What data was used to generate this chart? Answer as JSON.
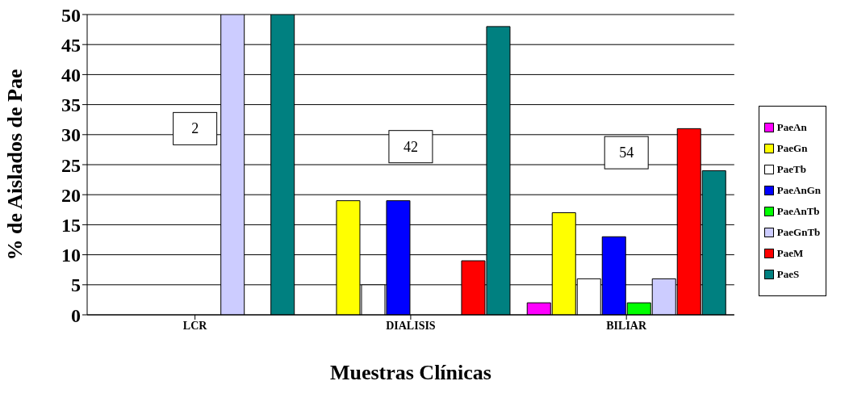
{
  "chart_data": {
    "type": "bar",
    "xlabel": "Muestras Clínicas",
    "ylabel": "% de Aislados de Pae",
    "categories": [
      "LCR",
      "DIALISIS",
      "BILIAR"
    ],
    "series": [
      {
        "name": "PaeAn",
        "color": "#ff00ff",
        "values": [
          0,
          0,
          2
        ]
      },
      {
        "name": "PaeGn",
        "color": "#ffff00",
        "values": [
          0,
          19,
          17
        ]
      },
      {
        "name": "PaeTb",
        "color": "#ffffff",
        "values": [
          0,
          5,
          6
        ]
      },
      {
        "name": "PaeAnGn",
        "color": "#0000ff",
        "values": [
          0,
          19,
          13
        ]
      },
      {
        "name": "PaeAnTb",
        "color": "#00ff00",
        "values": [
          0,
          0,
          2
        ]
      },
      {
        "name": "PaeGnTb",
        "color": "#ccccff",
        "values": [
          50,
          0,
          6
        ]
      },
      {
        "name": "PaeM",
        "color": "#ff0000",
        "values": [
          0,
          9,
          31
        ]
      },
      {
        "name": "PaeS",
        "color": "#008080",
        "values": [
          50,
          48,
          24
        ]
      }
    ],
    "ylim": [
      0,
      50
    ],
    "yticks": [
      0,
      5,
      10,
      15,
      20,
      25,
      30,
      35,
      40,
      45,
      50
    ],
    "grid": "y",
    "legend": "right",
    "annotations": [
      "2",
      "42",
      "54"
    ]
  }
}
